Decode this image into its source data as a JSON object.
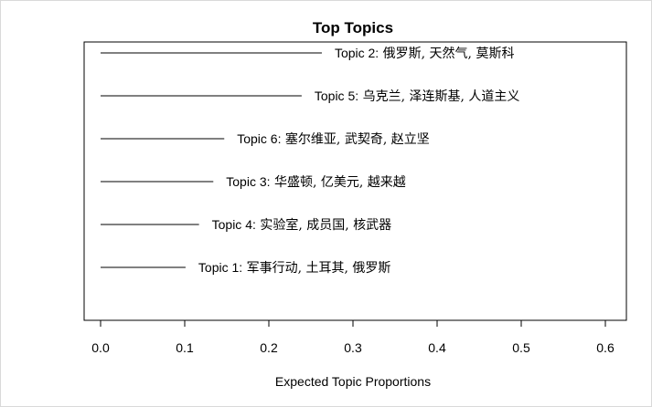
{
  "chart_data": {
    "type": "bar",
    "title": "Top Topics",
    "xlabel": "Expected Topic Proportions",
    "ylabel": "",
    "xlim": [
      0.0,
      0.6
    ],
    "xticks": [
      "0.0",
      "0.1",
      "0.2",
      "0.3",
      "0.4",
      "0.5",
      "0.6"
    ],
    "grid": false,
    "orientation": "horizontal",
    "bars": [
      {
        "topic": "Topic 2",
        "words": "俄罗斯, 天然气, 莫斯科",
        "value": 0.263
      },
      {
        "topic": "Topic 5",
        "words": "乌克兰, 泽连斯基, 人道主义",
        "value": 0.239
      },
      {
        "topic": "Topic 6",
        "words": "塞尔维亚, 武契奇, 赵立坚",
        "value": 0.147
      },
      {
        "topic": "Topic 3",
        "words": "华盛顿, 亿美元, 越来越",
        "value": 0.134
      },
      {
        "topic": "Topic 4",
        "words": "实验室, 成员国, 核武器",
        "value": 0.117
      },
      {
        "topic": "Topic 1",
        "words": "军事行动, 土耳其, 俄罗斯",
        "value": 0.101
      }
    ]
  }
}
